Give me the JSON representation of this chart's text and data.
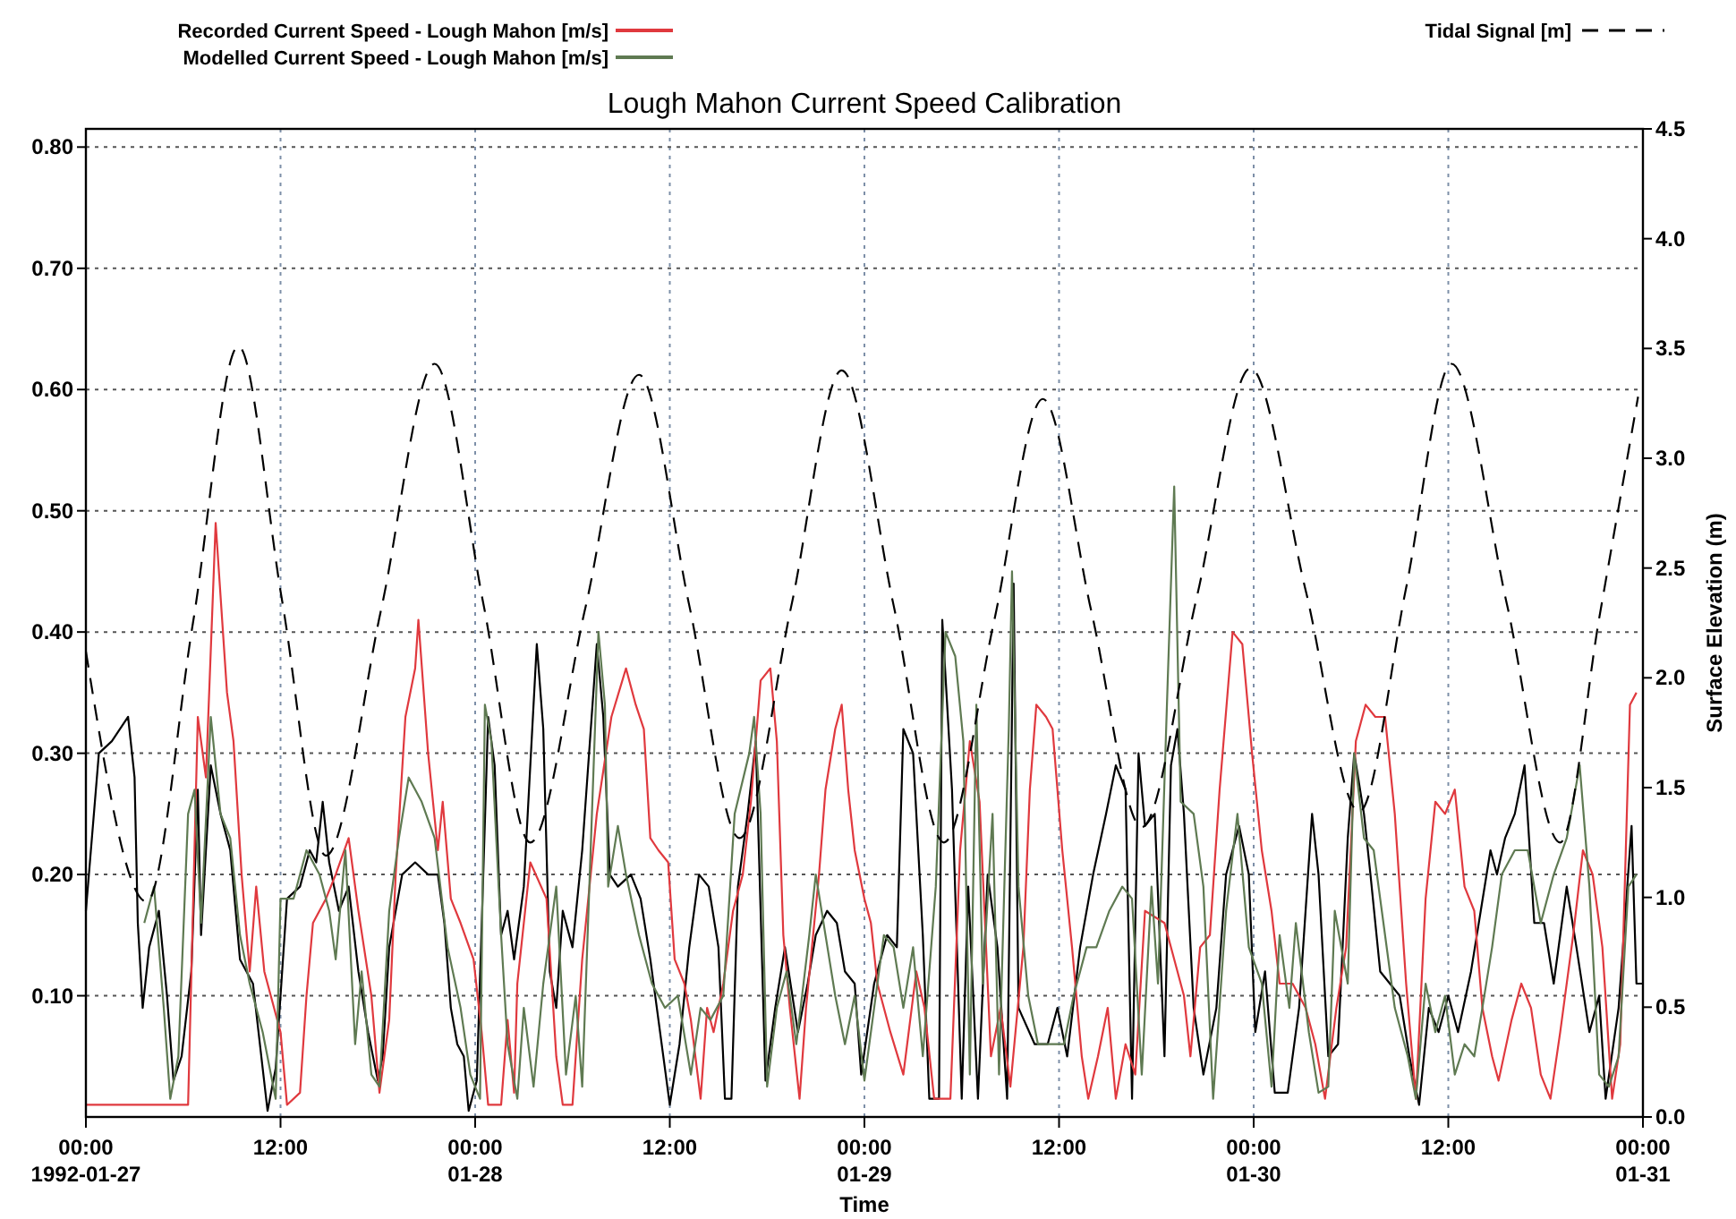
{
  "chart_data": {
    "type": "line",
    "title": "Lough Mahon Current Speed Calibration",
    "xlabel": "Time",
    "y2label": "Surface Elevation (m)",
    "xlim": [
      "1992-01-27T00:00",
      "1992-01-31T00:00"
    ],
    "xticks": [
      {
        "value": "1992-01-27T00:00",
        "label": "00:00\n1992-01-27"
      },
      {
        "value": "1992-01-27T12:00",
        "label": "12:00"
      },
      {
        "value": "1992-01-28T00:00",
        "label": "00:00\n01-28"
      },
      {
        "value": "1992-01-28T12:00",
        "label": "12:00"
      },
      {
        "value": "1992-01-29T00:00",
        "label": "00:00\n01-29"
      },
      {
        "value": "1992-01-29T12:00",
        "label": "12:00"
      },
      {
        "value": "1992-01-30T00:00",
        "label": "00:00\n01-30"
      },
      {
        "value": "1992-01-30T12:00",
        "label": "12:00"
      },
      {
        "value": "1992-01-31T00:00",
        "label": "00:00\n01-31"
      }
    ],
    "ylim": [
      0,
      0.815
    ],
    "yticks": [
      {
        "value": 0.1,
        "label": "0.10"
      },
      {
        "value": 0.2,
        "label": "0.20"
      },
      {
        "value": 0.3,
        "label": "0.30"
      },
      {
        "value": 0.4,
        "label": "0.40"
      },
      {
        "value": 0.5,
        "label": "0.50"
      },
      {
        "value": 0.6,
        "label": "0.60"
      },
      {
        "value": 0.7,
        "label": "0.70"
      },
      {
        "value": 0.8,
        "label": "0.80"
      }
    ],
    "y2lim": [
      0,
      4.5
    ],
    "y2ticks": [
      {
        "value": 0,
        "label": "0.0"
      },
      {
        "value": 0.5,
        "label": "0.5"
      },
      {
        "value": 1,
        "label": "1.0"
      },
      {
        "value": 1.5,
        "label": "1.5"
      },
      {
        "value": 2,
        "label": "2.0"
      },
      {
        "value": 2.5,
        "label": "2.5"
      },
      {
        "value": 3,
        "label": "3.0"
      },
      {
        "value": 3.5,
        "label": "3.5"
      },
      {
        "value": 4,
        "label": "4.0"
      },
      {
        "value": 4.5,
        "label": "4.5"
      }
    ],
    "grid": true,
    "legend": "top",
    "line_style": "solid",
    "series": [
      {
        "color": "#000000",
        "x": [
          "1992-01-27T00:00",
          "1992-01-27T00:48",
          "1992-01-27T01:36",
          "1992-01-27T02:36",
          "1992-01-27T03:00",
          "1992-01-27T03:12",
          "1992-01-27T03:30",
          "1992-01-27T03:54",
          "1992-01-27T04:30",
          "1992-01-27T05:00",
          "1992-01-27T05:24",
          "1992-01-27T05:54",
          "1992-01-27T06:30",
          "1992-01-27T06:54",
          "1992-01-27T07:06",
          "1992-01-27T07:42",
          "1992-01-27T08:18",
          "1992-01-27T08:54",
          "1992-01-27T09:30",
          "1992-01-27T10:18",
          "1992-01-27T10:54",
          "1992-01-27T11:12",
          "1992-01-27T11:42",
          "1992-01-27T12:00",
          "1992-01-27T12:24",
          "1992-01-27T13:12",
          "1992-01-27T13:48",
          "1992-01-27T14:12",
          "1992-01-27T14:36",
          "1992-01-27T15:00",
          "1992-01-27T15:36",
          "1992-01-27T16:12",
          "1992-01-27T16:48",
          "1992-01-27T17:24",
          "1992-01-27T18:00",
          "1992-01-27T18:18",
          "1992-01-27T18:42",
          "1992-01-27T19:30",
          "1992-01-27T20:18",
          "1992-01-27T21:06",
          "1992-01-27T21:42",
          "1992-01-27T22:06",
          "1992-01-27T22:30",
          "1992-01-27T22:54",
          "1992-01-27T23:18",
          "1992-01-27T23:36",
          "1992-01-28T00:06",
          "1992-01-28T00:30",
          "1992-01-28T00:48",
          "1992-01-28T01:12",
          "1992-01-28T01:36",
          "1992-01-28T02:00",
          "1992-01-28T02:24",
          "1992-01-28T03:00",
          "1992-01-28T03:48",
          "1992-01-28T04:12",
          "1992-01-28T04:36",
          "1992-01-28T05:00",
          "1992-01-28T05:24",
          "1992-01-28T06:00",
          "1992-01-28T06:36",
          "1992-01-28T07:30",
          "1992-01-28T07:54",
          "1992-01-28T08:18",
          "1992-01-28T08:48",
          "1992-01-28T09:36",
          "1992-01-28T10:12",
          "1992-01-28T10:48",
          "1992-01-28T11:24",
          "1992-01-28T12:00",
          "1992-01-28T12:36",
          "1992-01-28T13:12",
          "1992-01-28T13:48",
          "1992-01-28T14:24",
          "1992-01-28T15:00",
          "1992-01-28T15:24",
          "1992-01-28T15:48",
          "1992-01-28T16:12",
          "1992-01-28T16:48",
          "1992-01-28T17:18",
          "1992-01-28T17:54",
          "1992-01-28T18:30",
          "1992-01-28T19:06",
          "1992-01-28T19:54",
          "1992-01-28T20:30",
          "1992-01-28T21:00",
          "1992-01-28T21:42",
          "1992-01-28T22:18",
          "1992-01-28T22:48",
          "1992-01-28T23:24",
          "1992-01-28T23:48",
          "1992-01-29T00:36",
          "1992-01-29T01:24",
          "1992-01-29T02:00",
          "1992-01-29T02:24",
          "1992-01-29T03:00",
          "1992-01-29T03:36",
          "1992-01-29T04:00",
          "1992-01-29T04:36",
          "1992-01-29T04:48",
          "1992-01-29T05:24",
          "1992-01-29T06:00",
          "1992-01-29T06:24",
          "1992-01-29T07:00",
          "1992-01-29T07:36",
          "1992-01-29T08:12",
          "1992-01-29T08:48",
          "1992-01-29T09:12",
          "1992-01-29T09:30",
          "1992-01-29T10:30",
          "1992-01-29T11:18",
          "1992-01-29T11:54",
          "1992-01-29T12:30",
          "1992-01-29T13:18",
          "1992-01-29T14:06",
          "1992-01-29T14:54",
          "1992-01-29T15:30",
          "1992-01-29T16:06",
          "1992-01-29T16:30",
          "1992-01-29T16:54",
          "1992-01-29T17:18",
          "1992-01-29T17:54",
          "1992-01-29T18:30",
          "1992-01-29T18:54",
          "1992-01-29T19:18",
          "1992-01-29T19:42",
          "1992-01-29T20:18",
          "1992-01-29T20:54",
          "1992-01-29T21:42",
          "1992-01-29T22:18",
          "1992-01-29T23:06",
          "1992-01-29T23:42",
          "1992-01-30T00:06",
          "1992-01-30T00:42",
          "1992-01-30T01:18",
          "1992-01-30T02:06",
          "1992-01-30T02:48",
          "1992-01-30T03:36",
          "1992-01-30T04:00",
          "1992-01-30T04:36",
          "1992-01-30T05:12",
          "1992-01-30T05:48",
          "1992-01-30T06:12",
          "1992-01-30T06:48",
          "1992-01-30T07:12",
          "1992-01-30T07:48",
          "1992-01-30T08:24",
          "1992-01-30T09:00",
          "1992-01-30T09:36",
          "1992-01-30T10:12",
          "1992-01-30T10:48",
          "1992-01-30T11:24",
          "1992-01-30T12:00",
          "1992-01-30T12:36",
          "1992-01-30T13:24",
          "1992-01-30T14:00",
          "1992-01-30T14:36",
          "1992-01-30T15:00",
          "1992-01-30T15:30",
          "1992-01-30T16:06",
          "1992-01-30T16:42",
          "1992-01-30T17:18",
          "1992-01-30T17:54",
          "1992-01-30T18:30",
          "1992-01-30T19:18",
          "1992-01-30T19:54",
          "1992-01-30T20:42",
          "1992-01-30T21:18",
          "1992-01-30T21:42",
          "1992-01-30T22:30",
          "1992-01-30T23:18",
          "1992-01-30T23:36",
          "1992-01-31T00:00"
        ],
        "values": [
          0.17,
          0.3,
          0.31,
          0.33,
          0.28,
          0.16,
          0.09,
          0.14,
          0.17,
          0.1,
          0.03,
          0.05,
          0.12,
          0.27,
          0.15,
          0.29,
          0.25,
          0.22,
          0.13,
          0.11,
          0.04,
          0.005,
          0.04,
          0.1,
          0.18,
          0.19,
          0.22,
          0.21,
          0.26,
          0.21,
          0.17,
          0.19,
          0.12,
          0.07,
          0.03,
          0.05,
          0.14,
          0.2,
          0.21,
          0.2,
          0.2,
          0.16,
          0.09,
          0.06,
          0.05,
          0.005,
          0.03,
          0.2,
          0.33,
          0.29,
          0.15,
          0.17,
          0.13,
          0.19,
          0.39,
          0.32,
          0.12,
          0.09,
          0.17,
          0.14,
          0.22,
          0.39,
          0.33,
          0.2,
          0.19,
          0.2,
          0.18,
          0.13,
          0.07,
          0.01,
          0.06,
          0.14,
          0.2,
          0.19,
          0.14,
          0.015,
          0.015,
          0.19,
          0.25,
          0.31,
          0.03,
          0.09,
          0.14,
          0.07,
          0.11,
          0.15,
          0.17,
          0.16,
          0.12,
          0.11,
          0.035,
          0.11,
          0.15,
          0.14,
          0.32,
          0.3,
          0.15,
          0.015,
          0.015,
          0.41,
          0.27,
          0.015,
          0.19,
          0.015,
          0.2,
          0.14,
          0.015,
          0.44,
          0.09,
          0.06,
          0.06,
          0.09,
          0.05,
          0.14,
          0.2,
          0.25,
          0.29,
          0.27,
          0.015,
          0.3,
          0.24,
          0.25,
          0.05,
          0.29,
          0.32,
          0.25,
          0.09,
          0.035,
          0.09,
          0.2,
          0.24,
          0.2,
          0.07,
          0.12,
          0.02,
          0.02,
          0.09,
          0.25,
          0.2,
          0.05,
          0.06,
          0.23,
          0.3,
          0.25,
          0.2,
          0.12,
          0.11,
          0.1,
          0.05,
          0.01,
          0.09,
          0.07,
          0.1,
          0.07,
          0.12,
          0.17,
          0.22,
          0.2,
          0.23,
          0.25,
          0.29,
          0.16,
          0.16,
          0.11,
          0.19,
          0.14,
          0.07,
          0.1,
          0.015,
          0.09,
          0.24,
          0.11,
          0.11
        ]
      },
      {
        "name": "Recorded Current Speed - Lough Mahon [m/s]",
        "color": "#e0393e",
        "x": [
          "1992-01-27T00:00",
          "1992-01-27T06:18",
          "1992-01-27T06:54",
          "1992-01-27T07:24",
          "1992-01-27T08:00",
          "1992-01-27T08:42",
          "1992-01-27T09:06",
          "1992-01-27T09:36",
          "1992-01-27T10:06",
          "1992-01-27T10:30",
          "1992-01-27T11:00",
          "1992-01-27T12:00",
          "1992-01-27T12:24",
          "1992-01-27T13:12",
          "1992-01-27T13:36",
          "1992-01-27T14:00",
          "1992-01-27T14:48",
          "1992-01-27T15:24",
          "1992-01-27T16:12",
          "1992-01-27T16:48",
          "1992-01-27T17:36",
          "1992-01-27T18:06",
          "1992-01-27T18:42",
          "1992-01-27T19:06",
          "1992-01-27T19:42",
          "1992-01-27T20:18",
          "1992-01-27T20:30",
          "1992-01-27T21:06",
          "1992-01-27T21:42",
          "1992-01-27T22:00",
          "1992-01-27T22:30",
          "1992-01-27T23:06",
          "1992-01-27T23:54",
          "1992-01-28T00:24",
          "1992-01-28T00:48",
          "1992-01-28T01:36",
          "1992-01-28T02:00",
          "1992-01-28T02:24",
          "1992-01-28T02:36",
          "1992-01-28T03:24",
          "1992-01-28T04:24",
          "1992-01-28T05:00",
          "1992-01-28T05:24",
          "1992-01-28T06:00",
          "1992-01-28T06:36",
          "1992-01-28T07:30",
          "1992-01-28T08:24",
          "1992-01-28T09:18",
          "1992-01-28T09:54",
          "1992-01-28T10:24",
          "1992-01-28T10:48",
          "1992-01-28T11:18",
          "1992-01-28T11:54",
          "1992-01-28T12:18",
          "1992-01-28T12:54",
          "1992-01-28T13:18",
          "1992-01-28T13:54",
          "1992-01-28T14:18",
          "1992-01-28T14:42",
          "1992-01-28T15:18",
          "1992-01-28T15:54",
          "1992-01-28T16:30",
          "1992-01-28T17:00",
          "1992-01-28T17:36",
          "1992-01-28T18:12",
          "1992-01-28T18:36",
          "1992-01-28T19:00",
          "1992-01-28T19:24",
          "1992-01-28T20:00",
          "1992-01-28T20:24",
          "1992-01-28T21:12",
          "1992-01-28T21:36",
          "1992-01-28T22:12",
          "1992-01-28T22:36",
          "1992-01-28T23:00",
          "1992-01-28T23:24",
          "1992-01-29T00:00",
          "1992-01-29T00:24",
          "1992-01-29T00:48",
          "1992-01-29T01:36",
          "1992-01-29T02:24",
          "1992-01-29T03:12",
          "1992-01-29T03:42",
          "1992-01-29T04:18",
          "1992-01-29T05:18",
          "1992-01-29T05:54",
          "1992-01-29T06:30",
          "1992-01-29T07:06",
          "1992-01-29T07:48",
          "1992-01-29T08:24",
          "1992-01-29T09:00",
          "1992-01-29T09:48",
          "1992-01-29T10:12",
          "1992-01-29T10:36",
          "1992-01-29T11:12",
          "1992-01-29T11:36",
          "1992-01-29T12:12",
          "1992-01-29T12:48",
          "1992-01-29T13:24",
          "1992-01-29T13:48",
          "1992-01-29T14:24",
          "1992-01-29T15:00",
          "1992-01-29T15:30",
          "1992-01-29T16:06",
          "1992-01-29T16:42",
          "1992-01-29T17:18",
          "1992-01-29T18:30",
          "1992-01-29T19:42",
          "1992-01-29T20:06",
          "1992-01-29T20:42",
          "1992-01-29T21:18",
          "1992-01-29T21:54",
          "1992-01-29T22:42",
          "1992-01-29T23:18",
          "1992-01-29T23:54",
          "1992-01-30T00:30",
          "1992-01-30T01:06",
          "1992-01-30T01:36",
          "1992-01-30T02:24",
          "1992-01-30T03:12",
          "1992-01-30T03:48",
          "1992-01-30T04:24",
          "1992-01-30T05:06",
          "1992-01-30T05:42",
          "1992-01-30T06:18",
          "1992-01-30T06:54",
          "1992-01-30T07:30",
          "1992-01-30T08:06",
          "1992-01-30T08:42",
          "1992-01-30T09:24",
          "1992-01-30T10:00",
          "1992-01-30T10:36",
          "1992-01-30T11:12",
          "1992-01-30T11:48",
          "1992-01-30T12:24",
          "1992-01-30T13:00",
          "1992-01-30T13:36",
          "1992-01-30T14:06",
          "1992-01-30T14:42",
          "1992-01-30T15:06",
          "1992-01-30T15:54",
          "1992-01-30T16:30",
          "1992-01-30T17:06",
          "1992-01-30T17:42",
          "1992-01-30T18:18",
          "1992-01-30T18:54",
          "1992-01-30T19:42",
          "1992-01-30T20:18",
          "1992-01-30T20:54",
          "1992-01-30T21:30",
          "1992-01-30T22:06",
          "1992-01-30T22:36",
          "1992-01-30T23:12",
          "1992-01-30T23:36"
        ],
        "values": [
          0.01,
          0.01,
          0.33,
          0.28,
          0.49,
          0.35,
          0.31,
          0.2,
          0.12,
          0.19,
          0.12,
          0.07,
          0.01,
          0.02,
          0.1,
          0.16,
          0.18,
          0.2,
          0.23,
          0.17,
          0.1,
          0.02,
          0.08,
          0.2,
          0.33,
          0.37,
          0.41,
          0.3,
          0.22,
          0.26,
          0.18,
          0.16,
          0.13,
          0.07,
          0.01,
          0.01,
          0.08,
          0.02,
          0.11,
          0.21,
          0.18,
          0.05,
          0.01,
          0.01,
          0.13,
          0.25,
          0.33,
          0.37,
          0.34,
          0.32,
          0.23,
          0.22,
          0.21,
          0.13,
          0.11,
          0.08,
          0.015,
          0.09,
          0.07,
          0.11,
          0.17,
          0.2,
          0.26,
          0.36,
          0.37,
          0.31,
          0.15,
          0.09,
          0.015,
          0.09,
          0.2,
          0.27,
          0.32,
          0.34,
          0.27,
          0.22,
          0.18,
          0.16,
          0.11,
          0.07,
          0.035,
          0.12,
          0.09,
          0.015,
          0.015,
          0.22,
          0.31,
          0.26,
          0.05,
          0.09,
          0.025,
          0.14,
          0.27,
          0.34,
          0.33,
          0.32,
          0.22,
          0.14,
          0.05,
          0.015,
          0.05,
          0.09,
          0.015,
          0.06,
          0.035,
          0.17,
          0.16,
          0.1,
          0.05,
          0.14,
          0.15,
          0.27,
          0.4,
          0.39,
          0.3,
          0.22,
          0.17,
          0.11,
          0.11,
          0.09,
          0.06,
          0.015,
          0.09,
          0.14,
          0.31,
          0.34,
          0.33,
          0.33,
          0.25,
          0.11,
          0.015,
          0.18,
          0.26,
          0.25,
          0.27,
          0.19,
          0.17,
          0.09,
          0.05,
          0.03,
          0.08,
          0.11,
          0.09,
          0.035,
          0.015,
          0.07,
          0.15,
          0.22,
          0.2,
          0.14,
          0.015,
          0.06,
          0.34,
          0.35
        ]
      },
      {
        "name": "Modelled Current Speed - Lough Mahon  [m/s]",
        "color": "#5f7a52",
        "x": [
          "1992-01-27T03:36",
          "1992-01-27T04:12",
          "1992-01-27T04:48",
          "1992-01-27T05:12",
          "1992-01-27T05:42",
          "1992-01-27T06:18",
          "1992-01-27T06:42",
          "1992-01-27T07:06",
          "1992-01-27T07:42",
          "1992-01-27T08:18",
          "1992-01-27T08:54",
          "1992-01-27T09:30",
          "1992-01-27T10:06",
          "1992-01-27T10:54",
          "1992-01-27T11:42",
          "1992-01-27T12:00",
          "1992-01-27T12:48",
          "1992-01-27T13:36",
          "1992-01-27T14:24",
          "1992-01-27T15:00",
          "1992-01-27T15:24",
          "1992-01-27T16:00",
          "1992-01-27T16:36",
          "1992-01-27T17:00",
          "1992-01-27T17:36",
          "1992-01-27T18:06",
          "1992-01-27T18:42",
          "1992-01-27T19:18",
          "1992-01-27T19:54",
          "1992-01-27T20:42",
          "1992-01-27T21:30",
          "1992-01-27T22:18",
          "1992-01-27T23:06",
          "1992-01-27T23:42",
          "1992-01-28T00:18",
          "1992-01-28T00:36",
          "1992-01-28T01:00",
          "1992-01-28T01:36",
          "1992-01-28T02:00",
          "1992-01-28T02:36",
          "1992-01-28T03:00",
          "1992-01-28T03:36",
          "1992-01-28T04:12",
          "1992-01-28T05:00",
          "1992-01-28T05:36",
          "1992-01-28T06:12",
          "1992-01-28T06:36",
          "1992-01-28T07:12",
          "1992-01-28T07:36",
          "1992-01-28T08:00",
          "1992-01-28T08:12",
          "1992-01-28T08:48",
          "1992-01-28T09:18",
          "1992-01-28T10:06",
          "1992-01-28T10:54",
          "1992-01-28T11:42",
          "1992-01-28T12:30",
          "1992-01-28T13:18",
          "1992-01-28T13:54",
          "1992-01-28T14:30",
          "1992-01-28T15:18",
          "1992-01-28T16:00",
          "1992-01-28T16:54",
          "1992-01-28T17:12",
          "1992-01-28T17:36",
          "1992-01-28T18:00",
          "1992-01-28T18:36",
          "1992-01-28T19:12",
          "1992-01-28T19:48",
          "1992-01-28T20:36",
          "1992-01-28T21:00",
          "1992-01-28T21:36",
          "1992-01-28T22:12",
          "1992-01-28T22:48",
          "1992-01-28T23:24",
          "1992-01-29T00:00",
          "1992-01-29T00:36",
          "1992-01-29T01:12",
          "1992-01-29T01:48",
          "1992-01-29T02:24",
          "1992-01-29T03:00",
          "1992-01-29T03:36",
          "1992-01-29T04:24",
          "1992-01-29T05:00",
          "1992-01-29T05:36",
          "1992-01-29T06:06",
          "1992-01-29T06:30",
          "1992-01-29T06:54",
          "1992-01-29T07:18",
          "1992-01-29T07:54",
          "1992-01-29T08:18",
          "1992-01-29T08:54",
          "1992-01-29T09:06",
          "1992-01-29T09:30",
          "1992-01-29T10:06",
          "1992-01-29T10:42",
          "1992-01-29T11:30",
          "1992-01-29T12:18",
          "1992-01-29T12:54",
          "1992-01-29T13:42",
          "1992-01-29T14:18",
          "1992-01-29T15:06",
          "1992-01-29T15:54",
          "1992-01-29T16:30",
          "1992-01-29T17:06",
          "1992-01-29T17:42",
          "1992-01-29T18:06",
          "1992-01-29T18:42",
          "1992-01-29T19:06",
          "1992-01-29T19:30",
          "1992-01-29T20:18",
          "1992-01-29T20:54",
          "1992-01-29T21:30",
          "1992-01-29T22:18",
          "1992-01-29T23:00",
          "1992-01-29T23:42",
          "1992-01-30T00:30",
          "1992-01-30T01:06",
          "1992-01-30T01:36",
          "1992-01-30T02:12",
          "1992-01-30T02:36",
          "1992-01-30T03:24",
          "1992-01-30T04:00",
          "1992-01-30T04:36",
          "1992-01-30T05:00",
          "1992-01-30T05:48",
          "1992-01-30T06:12",
          "1992-01-30T06:48",
          "1992-01-30T07:24",
          "1992-01-30T08:00",
          "1992-01-30T08:42",
          "1992-01-30T09:30",
          "1992-01-30T10:00",
          "1992-01-30T10:36",
          "1992-01-30T11:12",
          "1992-01-30T11:48",
          "1992-01-30T12:24",
          "1992-01-30T13:00",
          "1992-01-30T13:36",
          "1992-01-30T14:06",
          "1992-01-30T14:42",
          "1992-01-30T15:18",
          "1992-01-30T16:06",
          "1992-01-30T16:54",
          "1992-01-30T17:42",
          "1992-01-30T18:30",
          "1992-01-30T19:18",
          "1992-01-30T20:06",
          "1992-01-30T20:42",
          "1992-01-30T21:18",
          "1992-01-30T21:54",
          "1992-01-30T22:30",
          "1992-01-30T23:06",
          "1992-01-30T23:36"
        ],
        "values": [
          0.16,
          0.19,
          0.09,
          0.015,
          0.05,
          0.25,
          0.27,
          0.16,
          0.33,
          0.25,
          0.23,
          0.15,
          0.11,
          0.07,
          0.015,
          0.18,
          0.18,
          0.22,
          0.2,
          0.17,
          0.13,
          0.22,
          0.06,
          0.12,
          0.035,
          0.025,
          0.17,
          0.23,
          0.28,
          0.26,
          0.23,
          0.14,
          0.09,
          0.035,
          0.015,
          0.34,
          0.31,
          0.15,
          0.06,
          0.015,
          0.09,
          0.025,
          0.11,
          0.19,
          0.035,
          0.1,
          0.025,
          0.25,
          0.4,
          0.34,
          0.19,
          0.24,
          0.2,
          0.15,
          0.11,
          0.09,
          0.1,
          0.035,
          0.09,
          0.08,
          0.1,
          0.25,
          0.3,
          0.33,
          0.25,
          0.025,
          0.09,
          0.12,
          0.06,
          0.15,
          0.2,
          0.15,
          0.1,
          0.06,
          0.1,
          0.03,
          0.09,
          0.15,
          0.14,
          0.09,
          0.14,
          0.05,
          0.19,
          0.4,
          0.38,
          0.31,
          0.035,
          0.34,
          0.11,
          0.25,
          0.035,
          0.32,
          0.45,
          0.19,
          0.1,
          0.06,
          0.06,
          0.06,
          0.1,
          0.14,
          0.14,
          0.17,
          0.19,
          0.18,
          0.035,
          0.19,
          0.11,
          0.36,
          0.52,
          0.26,
          0.25,
          0.19,
          0.015,
          0.17,
          0.25,
          0.14,
          0.11,
          0.025,
          0.15,
          0.09,
          0.16,
          0.07,
          0.02,
          0.025,
          0.17,
          0.11,
          0.3,
          0.23,
          0.22,
          0.16,
          0.09,
          0.05,
          0.015,
          0.11,
          0.07,
          0.1,
          0.035,
          0.06,
          0.05,
          0.09,
          0.14,
          0.2,
          0.22,
          0.22,
          0.16,
          0.2,
          0.23,
          0.29,
          0.19,
          0.035,
          0.025,
          0.05,
          0.19,
          0.2
        ]
      },
      {
        "name": "Tidal Signal [m]",
        "color": "#000000",
        "axis": "y2",
        "line_style": "dashed",
        "x": [
          "1992-01-27T00:00",
          "1992-01-27T03:45",
          "1992-01-27T06:36",
          "1992-01-27T09:24",
          "1992-01-27T12:06",
          "1992-01-27T14:48",
          "1992-01-27T18:12",
          "1992-01-27T21:30",
          "1992-01-28T00:30",
          "1992-01-28T03:24",
          "1992-01-28T06:48",
          "1992-01-28T10:06",
          "1992-01-28T13:12",
          "1992-01-28T16:18",
          "1992-01-28T19:30",
          "1992-01-28T22:36",
          "1992-01-29T01:48",
          "1992-01-29T04:54",
          "1992-01-29T08:00",
          "1992-01-29T11:00",
          "1992-01-29T14:00",
          "1992-01-29T17:06",
          "1992-01-29T20:30",
          "1992-01-29T23:48",
          "1992-01-30T03:12",
          "1992-01-30T06:30",
          "1992-01-30T09:24",
          "1992-01-30T12:12",
          "1992-01-30T15:36",
          "1992-01-30T18:54",
          "1992-01-30T21:18",
          "1992-01-30T23:42"
        ],
        "values": [
          2.12,
          0.98,
          2.25,
          3.51,
          2.35,
          1.19,
          2.31,
          3.43,
          2.34,
          1.25,
          2.32,
          3.38,
          2.33,
          1.27,
          2.33,
          3.4,
          2.33,
          1.25,
          2.26,
          3.27,
          2.3,
          1.32,
          2.37,
          3.41,
          2.4,
          1.39,
          2.41,
          3.43,
          2.34,
          1.25,
          2.27,
          3.28
        ]
      }
    ]
  }
}
